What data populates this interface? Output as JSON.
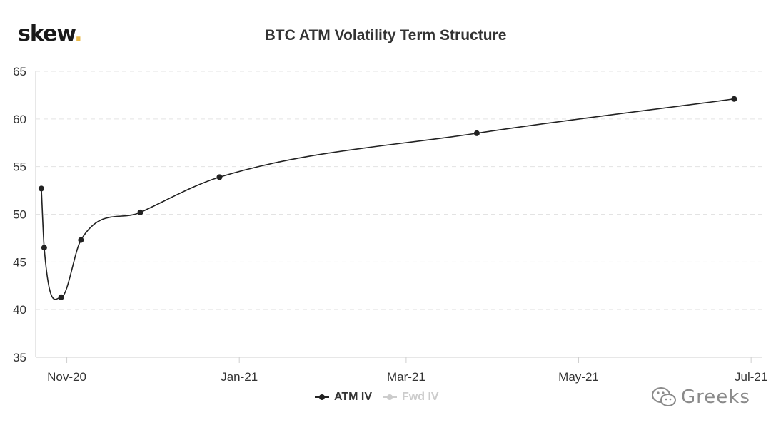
{
  "header": {
    "logo_text": "skew",
    "logo_dot": ".",
    "title": "BTC ATM Volatility Term Structure"
  },
  "legend": [
    {
      "name": "ATM IV",
      "color": "#222222",
      "visible": true
    },
    {
      "name": "Fwd IV",
      "color": "#cccccc",
      "visible": false
    }
  ],
  "watermark": {
    "text": "Greeks",
    "icon": "wechat-icon"
  },
  "chart_data": {
    "type": "line",
    "title": "BTC ATM Volatility Term Structure",
    "xlabel": "",
    "ylabel": "",
    "x_ticks": [
      "Nov-20",
      "Jan-21",
      "Mar-21",
      "May-21",
      "Jul-21"
    ],
    "y_ticks": [
      35,
      40,
      45,
      50,
      55,
      60,
      65
    ],
    "ylim": [
      35,
      65
    ],
    "xlim": [
      "2020-10-21",
      "2021-07-05"
    ],
    "grid": "horizontal-dashed",
    "legend_position": "bottom-center",
    "series": [
      {
        "name": "ATM IV",
        "color": "#222222",
        "points": [
          {
            "x": "2020-10-23",
            "y": 52.7
          },
          {
            "x": "2020-10-24",
            "y": 46.5
          },
          {
            "x": "2020-10-30",
            "y": 41.3
          },
          {
            "x": "2020-11-06",
            "y": 47.3
          },
          {
            "x": "2020-11-27",
            "y": 50.2
          },
          {
            "x": "2020-12-25",
            "y": 53.9
          },
          {
            "x": "2021-03-26",
            "y": 58.5
          },
          {
            "x": "2021-06-25",
            "y": 62.1
          }
        ]
      },
      {
        "name": "Fwd IV",
        "color": "#cccccc",
        "points": []
      }
    ]
  }
}
